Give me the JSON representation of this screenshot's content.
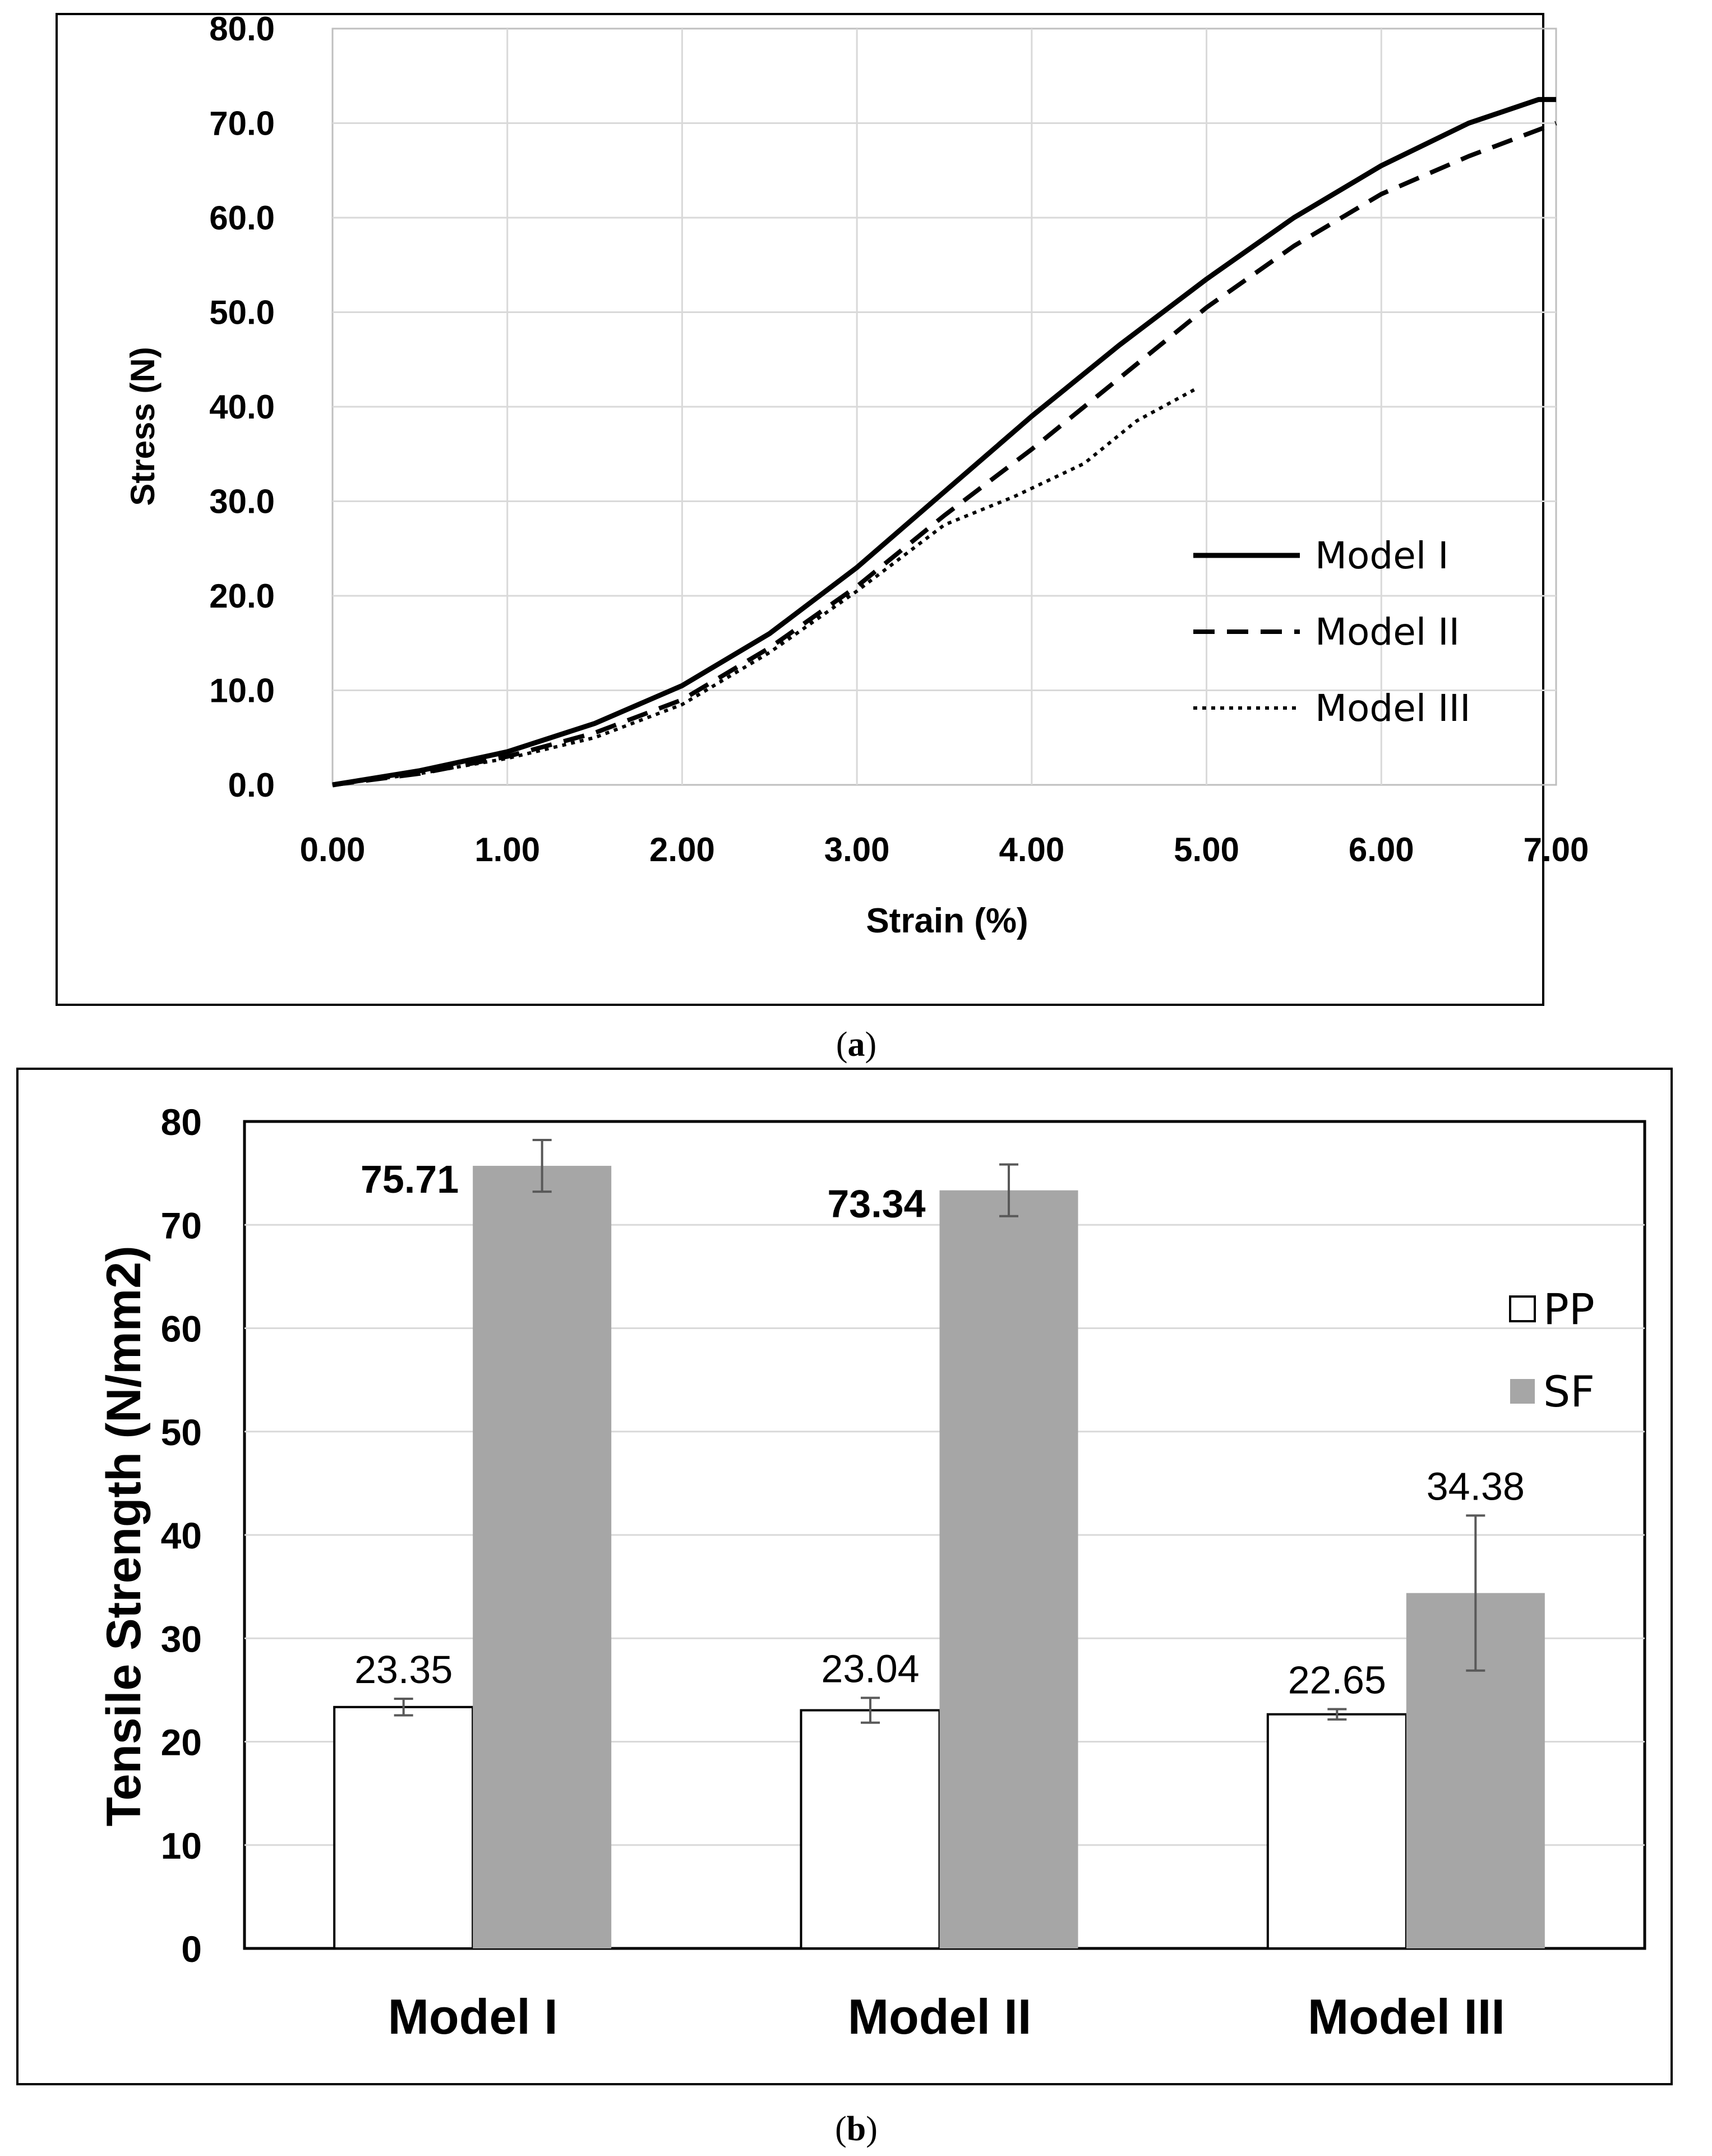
{
  "chart_data": [
    {
      "type": "line",
      "caption_letter": "a",
      "xlabel": "Strain (%)",
      "ylabel": "Stress (N)",
      "xlim": [
        0,
        7
      ],
      "ylim": [
        0,
        80
      ],
      "x_ticks": [
        "0.00",
        "1.00",
        "2.00",
        "3.00",
        "4.00",
        "5.00",
        "6.00",
        "7.00"
      ],
      "y_ticks": [
        "0.0",
        "10.0",
        "20.0",
        "30.0",
        "40.0",
        "50.0",
        "60.0",
        "70.0",
        "80.0"
      ],
      "grid": true,
      "legend_position": "bottom-right",
      "series": [
        {
          "name": "Model I",
          "style": "solid",
          "x": [
            0,
            0.5,
            1.0,
            1.5,
            2.0,
            2.5,
            3.0,
            3.5,
            4.0,
            4.5,
            5.0,
            5.5,
            6.0,
            6.5,
            6.9,
            7.0
          ],
          "y": [
            0,
            1.5,
            3.5,
            6.5,
            10.5,
            16.0,
            23.0,
            31.0,
            39.0,
            46.5,
            53.5,
            60.0,
            65.5,
            70.0,
            72.5,
            72.5
          ]
        },
        {
          "name": "Model II",
          "style": "dashed",
          "x": [
            0,
            0.5,
            1.0,
            1.5,
            2.0,
            2.5,
            3.0,
            3.5,
            4.0,
            4.5,
            5.0,
            5.5,
            6.0,
            6.5,
            7.0
          ],
          "y": [
            0,
            1.2,
            3.0,
            5.5,
            9.0,
            14.5,
            21.0,
            28.5,
            35.5,
            43.0,
            50.5,
            57.0,
            62.5,
            66.5,
            70.0
          ]
        },
        {
          "name": "Model III",
          "style": "dotted",
          "x": [
            0,
            0.5,
            1.0,
            1.5,
            2.0,
            2.5,
            3.0,
            3.5,
            3.9,
            4.3,
            4.6,
            4.95
          ],
          "y": [
            0,
            1.2,
            2.8,
            5.0,
            8.5,
            14.0,
            20.5,
            27.5,
            30.5,
            34.0,
            38.5,
            42.0
          ]
        }
      ]
    },
    {
      "type": "bar",
      "caption_letter": "b",
      "ylabel": "Tensile Strength (N/mm2)",
      "xlabel": "",
      "ylim": [
        0,
        80
      ],
      "y_ticks": [
        "0",
        "10",
        "20",
        "30",
        "40",
        "50",
        "60",
        "70",
        "80"
      ],
      "grid": true,
      "legend_position": "right",
      "categories": [
        "Model I",
        "Model II",
        "Model III"
      ],
      "series": [
        {
          "name": "PP",
          "color": "#ffffff",
          "values": [
            23.35,
            23.04,
            22.65
          ],
          "labels": [
            "23.35",
            "23.04",
            "22.65"
          ],
          "error": [
            0.8,
            1.2,
            0.5
          ]
        },
        {
          "name": "SF",
          "color": "#a6a6a6",
          "values": [
            75.71,
            73.34,
            34.38
          ],
          "labels": [
            "75.71",
            "73.34",
            "34.38"
          ],
          "error": [
            2.5,
            2.5,
            7.5
          ]
        }
      ]
    }
  ]
}
